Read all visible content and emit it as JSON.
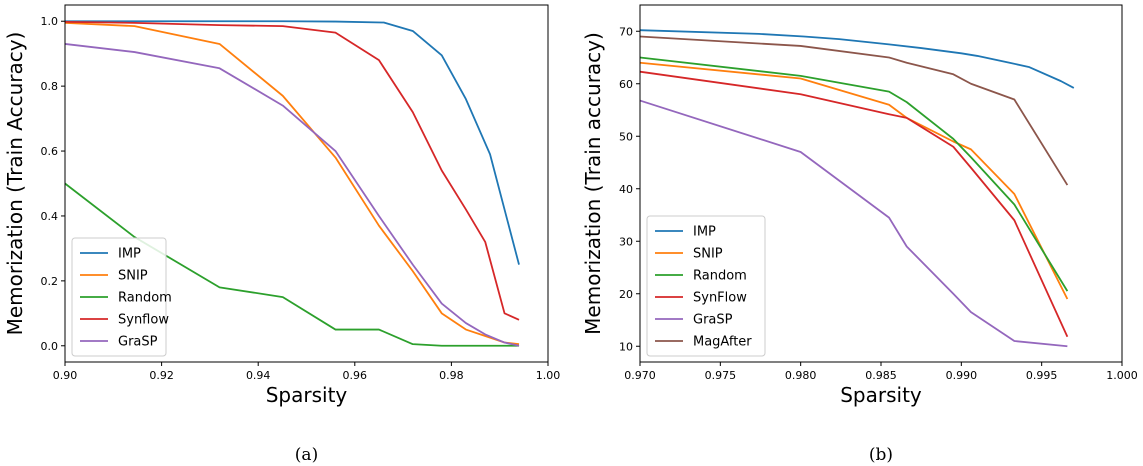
{
  "colors": {
    "IMP": "#1f77b4",
    "SNIP": "#ff7f0e",
    "Random": "#2ca02c",
    "Synflow": "#d62728",
    "SynFlow": "#d62728",
    "GraSP": "#9467bd",
    "MagAfter": "#8c564b"
  },
  "chart_data": [
    {
      "type": "line",
      "caption": "(a)",
      "xlabel": "Sparsity",
      "ylabel": "Memorization (Train Accuracy)",
      "xlim": [
        0.9,
        1.0
      ],
      "ylim": [
        -0.05,
        1.05
      ],
      "xticks": [
        0.9,
        0.92,
        0.94,
        0.96,
        0.98,
        1.0
      ],
      "xtick_labels": [
        "0.90",
        "0.92",
        "0.94",
        "0.96",
        "0.98",
        "1.00"
      ],
      "yticks": [
        0.0,
        0.2,
        0.4,
        0.6,
        0.8,
        1.0
      ],
      "ytick_labels": [
        "0.0",
        "0.2",
        "0.4",
        "0.6",
        "0.8",
        "1.0"
      ],
      "grid": false,
      "legend_position": "lower-left",
      "series": [
        {
          "name": "IMP",
          "x": [
            0.9,
            0.9144,
            0.932,
            0.9451,
            0.956,
            0.966,
            0.972,
            0.978,
            0.983,
            0.988,
            0.994
          ],
          "y": [
            1.0,
            1.0,
            1.0,
            1.0,
            0.999,
            0.996,
            0.97,
            0.895,
            0.76,
            0.59,
            0.25
          ]
        },
        {
          "name": "SNIP",
          "x": [
            0.9,
            0.9144,
            0.932,
            0.9451,
            0.956,
            0.965,
            0.972,
            0.978,
            0.983,
            0.987,
            0.991,
            0.994
          ],
          "y": [
            0.995,
            0.985,
            0.93,
            0.77,
            0.58,
            0.37,
            0.23,
            0.1,
            0.05,
            0.03,
            0.01,
            0.005
          ]
        },
        {
          "name": "Random",
          "x": [
            0.9,
            0.9144,
            0.932,
            0.9451,
            0.956,
            0.965,
            0.972,
            0.978,
            0.983,
            0.987,
            0.991,
            0.994
          ],
          "y": [
            0.5,
            0.335,
            0.18,
            0.15,
            0.05,
            0.05,
            0.005,
            0.0,
            0.0,
            0.0,
            0.0,
            0.0
          ]
        },
        {
          "name": "Synflow",
          "x": [
            0.9,
            0.9144,
            0.932,
            0.9451,
            0.956,
            0.965,
            0.972,
            0.978,
            0.983,
            0.987,
            0.991,
            0.994
          ],
          "y": [
            0.998,
            0.995,
            0.988,
            0.985,
            0.965,
            0.88,
            0.72,
            0.54,
            0.42,
            0.32,
            0.1,
            0.08
          ]
        },
        {
          "name": "GraSP",
          "x": [
            0.9,
            0.9144,
            0.932,
            0.9451,
            0.956,
            0.965,
            0.972,
            0.978,
            0.983,
            0.987,
            0.991,
            0.994
          ],
          "y": [
            0.93,
            0.905,
            0.855,
            0.74,
            0.6,
            0.4,
            0.25,
            0.13,
            0.07,
            0.035,
            0.01,
            0.0
          ]
        }
      ]
    },
    {
      "type": "line",
      "caption": "(b)",
      "xlabel": "Sparsity",
      "ylabel": "Memorization (Train accuracy)",
      "xlim": [
        0.97,
        1.0
      ],
      "ylim": [
        7,
        75
      ],
      "xticks": [
        0.97,
        0.975,
        0.98,
        0.985,
        0.99,
        0.995,
        1.0
      ],
      "xtick_labels": [
        "0.970",
        "0.975",
        "0.980",
        "0.985",
        "0.990",
        "0.995",
        "1.000"
      ],
      "yticks": [
        10,
        20,
        30,
        40,
        50,
        60,
        70
      ],
      "ytick_labels": [
        "10",
        "20",
        "30",
        "40",
        "50",
        "60",
        "70"
      ],
      "grid": false,
      "legend_position": "lower-left",
      "series": [
        {
          "name": "IMP",
          "x": [
            0.97,
            0.9774,
            0.9802,
            0.9824,
            0.9855,
            0.9875,
            0.99,
            0.991,
            0.993,
            0.9942,
            0.9962,
            0.997
          ],
          "y": [
            70.2,
            69.5,
            69.0,
            68.5,
            67.5,
            66.8,
            65.8,
            65.3,
            64.0,
            63.2,
            60.5,
            59.2
          ]
        },
        {
          "name": "SNIP",
          "x": [
            0.97,
            0.98,
            0.9855,
            0.9866,
            0.9895,
            0.9906,
            0.9933,
            0.9966
          ],
          "y": [
            64.0,
            61.0,
            56.0,
            53.5,
            49.0,
            47.5,
            39.0,
            19.0
          ]
        },
        {
          "name": "Random",
          "x": [
            0.97,
            0.98,
            0.9855,
            0.9866,
            0.9895,
            0.9906,
            0.9933,
            0.9966
          ],
          "y": [
            65.0,
            61.5,
            58.5,
            56.5,
            49.5,
            46.0,
            37.0,
            20.5
          ]
        },
        {
          "name": "SynFlow",
          "x": [
            0.97,
            0.98,
            0.9855,
            0.9866,
            0.9895,
            0.9906,
            0.9933,
            0.9966
          ],
          "y": [
            62.3,
            58.0,
            54.2,
            53.5,
            48.0,
            44.0,
            34.0,
            11.8
          ]
        },
        {
          "name": "GraSP",
          "x": [
            0.97,
            0.98,
            0.9855,
            0.9866,
            0.9895,
            0.9906,
            0.9933,
            0.9966
          ],
          "y": [
            56.8,
            47.0,
            34.5,
            29.0,
            20.0,
            16.5,
            11.0,
            10.0
          ]
        },
        {
          "name": "MagAfter",
          "x": [
            0.97,
            0.98,
            0.9855,
            0.9866,
            0.9895,
            0.9906,
            0.9933,
            0.9966
          ],
          "y": [
            69.0,
            67.2,
            65.0,
            64.0,
            61.8,
            60.0,
            57.0,
            40.7
          ]
        }
      ]
    }
  ]
}
